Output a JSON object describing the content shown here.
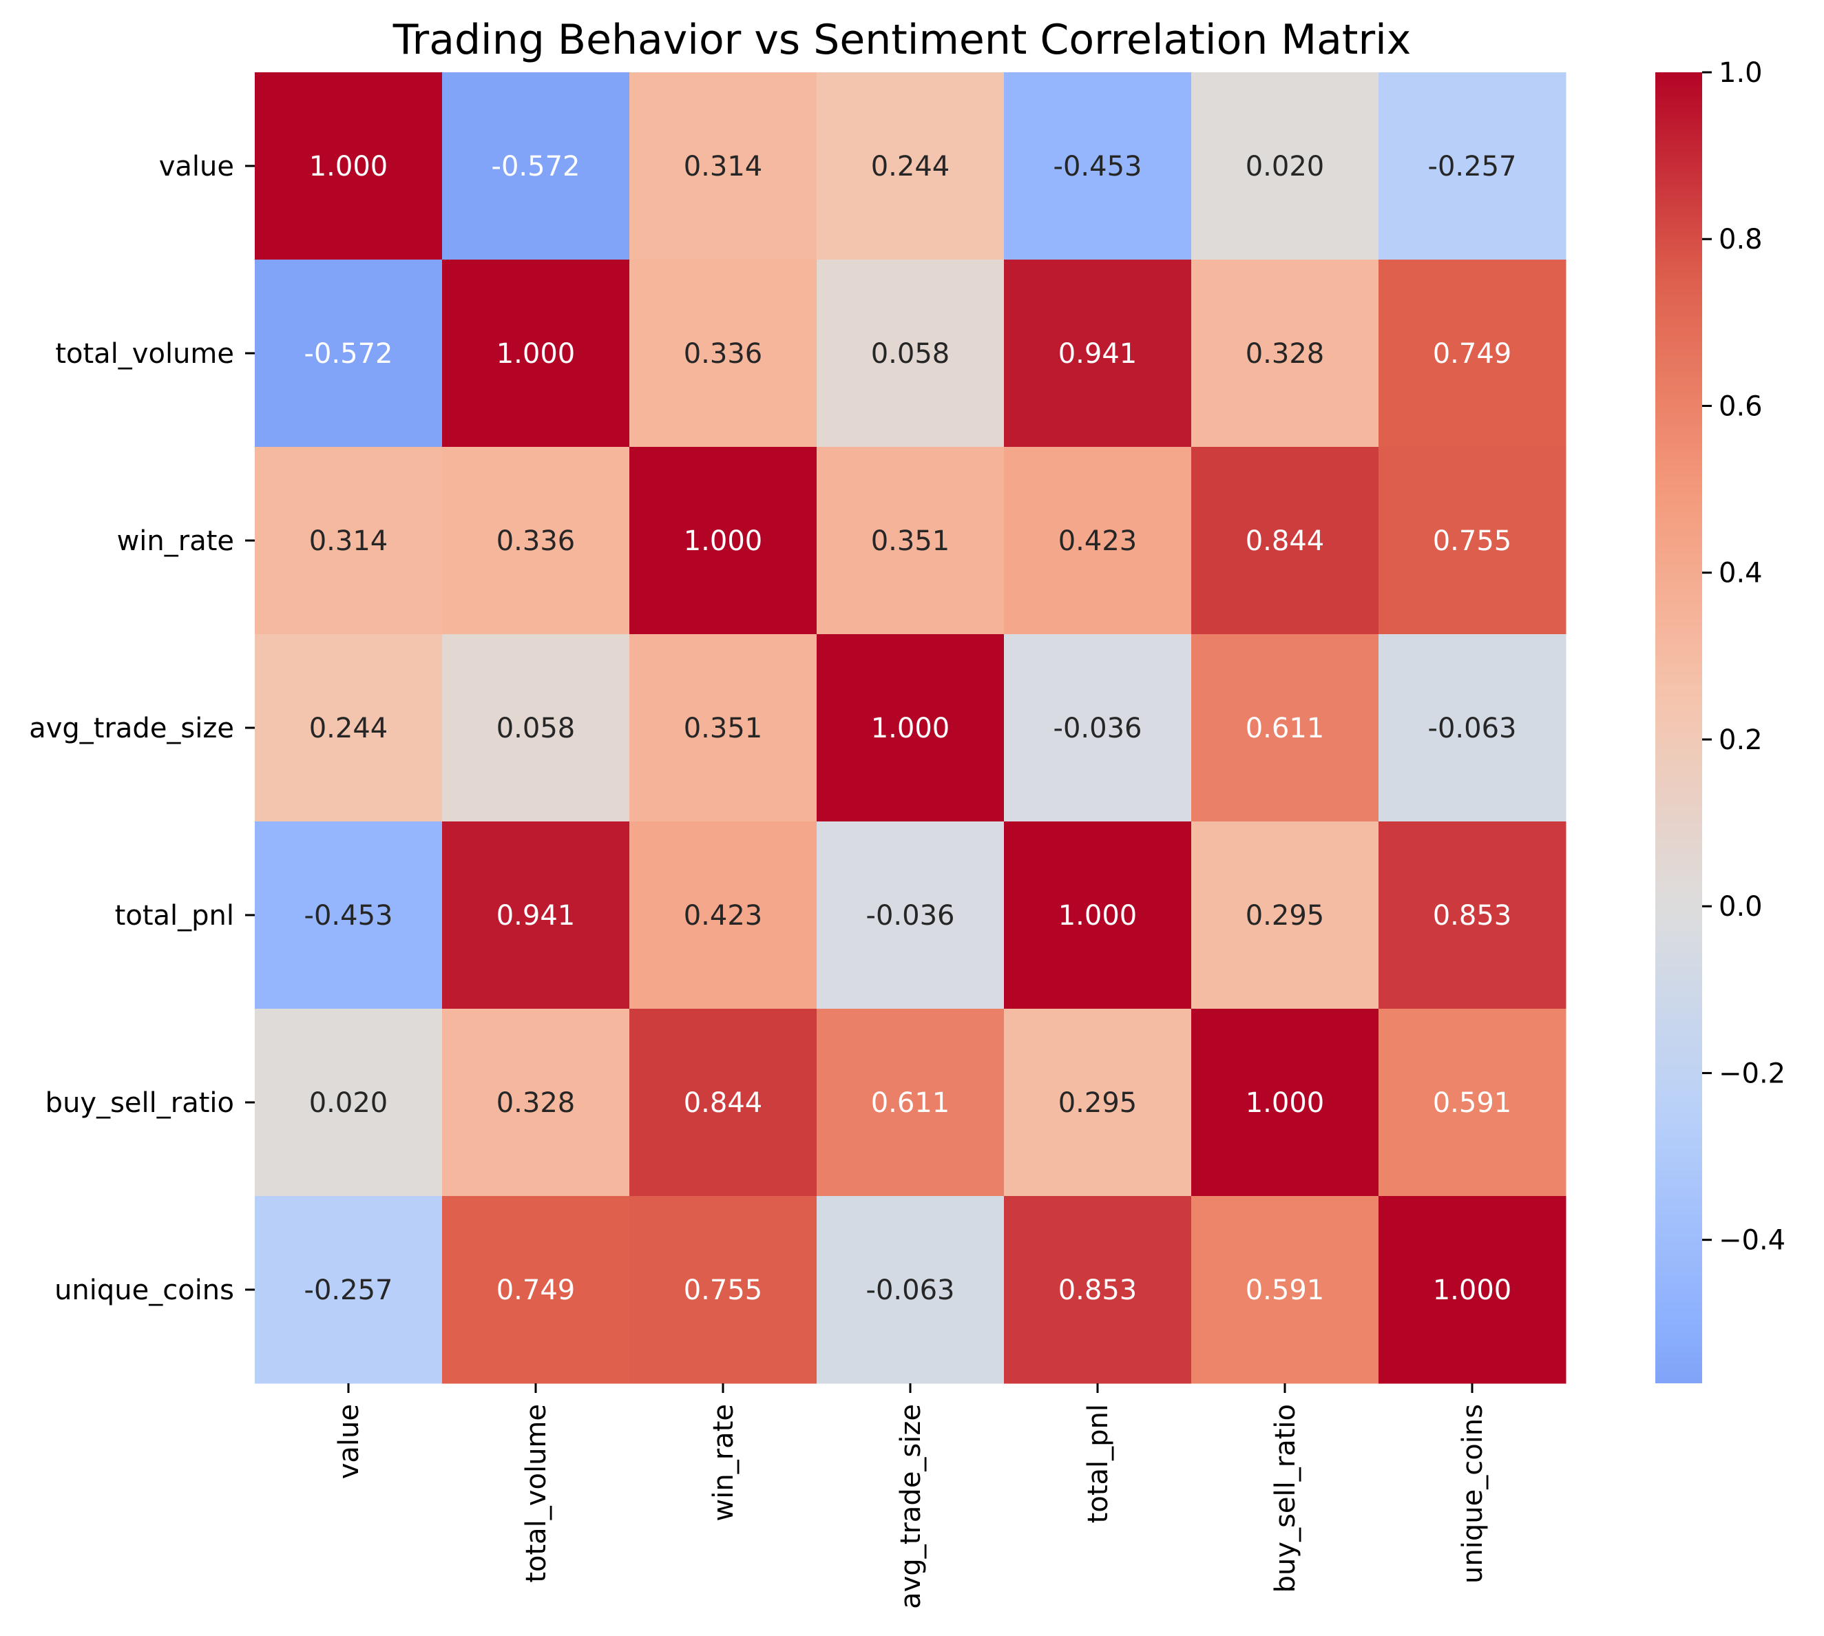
{
  "chart_data": {
    "type": "heatmap",
    "title": "Trading Behavior vs Sentiment Correlation Matrix",
    "xlabel": "",
    "ylabel": "",
    "row_labels": [
      "value",
      "total_volume",
      "win_rate",
      "avg_trade_size",
      "total_pnl",
      "buy_sell_ratio",
      "unique_coins"
    ],
    "col_labels": [
      "value",
      "total_volume",
      "win_rate",
      "avg_trade_size",
      "total_pnl",
      "buy_sell_ratio",
      "unique_coins"
    ],
    "values": [
      [
        1.0,
        -0.572,
        0.314,
        0.244,
        -0.453,
        0.02,
        -0.257
      ],
      [
        -0.572,
        1.0,
        0.336,
        0.058,
        0.941,
        0.328,
        0.749
      ],
      [
        0.314,
        0.336,
        1.0,
        0.351,
        0.423,
        0.844,
        0.755
      ],
      [
        0.244,
        0.058,
        0.351,
        1.0,
        -0.036,
        0.611,
        -0.063
      ],
      [
        -0.453,
        0.941,
        0.423,
        -0.036,
        1.0,
        0.295,
        0.853
      ],
      [
        0.02,
        0.328,
        0.844,
        0.611,
        0.295,
        1.0,
        0.591
      ],
      [
        -0.257,
        0.749,
        0.755,
        -0.063,
        0.853,
        0.591,
        1.0
      ]
    ],
    "value_format": "0.000",
    "colormap": "coolwarm",
    "center": 0,
    "vmin": -0.572,
    "vmax": 1.0,
    "colorbar": {
      "ticks": [
        1.0,
        0.8,
        0.6,
        0.4,
        0.2,
        0.0,
        -0.2,
        -0.4
      ],
      "tick_labels": [
        "1.0",
        "0.8",
        "0.6",
        "0.4",
        "0.2",
        "0.0",
        "−0.2",
        "−0.4"
      ]
    },
    "grid": false,
    "legend": "colorbar-right"
  }
}
